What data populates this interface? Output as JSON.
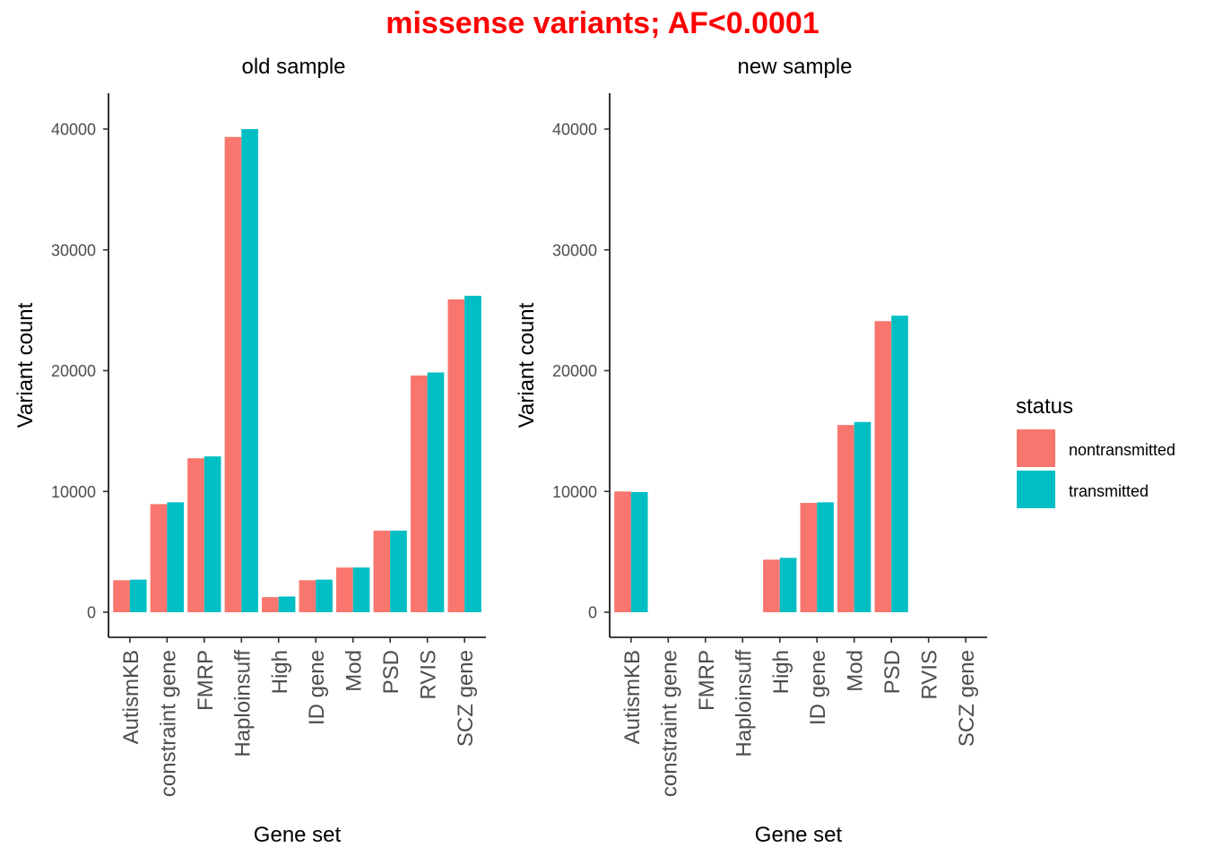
{
  "figure": {
    "title": "missense variants; AF<0.0001",
    "title_color": "#ff0000"
  },
  "legend": {
    "title": "status",
    "items": [
      {
        "label": "nontransmitted",
        "color": "#f8766d"
      },
      {
        "label": "transmitted",
        "color": "#00bfc4"
      }
    ]
  },
  "chart_data": [
    {
      "type": "bar",
      "title": "old sample",
      "xlabel": "Gene set",
      "ylabel": "Variant count",
      "ylim": [
        0,
        40000
      ],
      "yticks": [
        0,
        10000,
        20000,
        30000,
        40000
      ],
      "grid": false,
      "categories": [
        "AutismKB",
        "constraint gene",
        "FMRP",
        "Haploinsuff",
        "High",
        "ID gene",
        "Mod",
        "PSD",
        "RVIS",
        "SCZ gene"
      ],
      "series": [
        {
          "name": "nontransmitted",
          "values": [
            2650,
            8950,
            12750,
            39350,
            1250,
            2650,
            3700,
            6750,
            19600,
            25900
          ]
        },
        {
          "name": "transmitted",
          "values": [
            2700,
            9100,
            12900,
            40000,
            1300,
            2700,
            3700,
            6750,
            19850,
            26200
          ]
        }
      ]
    },
    {
      "type": "bar",
      "title": "new sample",
      "xlabel": "Gene set",
      "ylabel": "Variant count",
      "ylim": [
        0,
        40000
      ],
      "yticks": [
        0,
        10000,
        20000,
        30000,
        40000
      ],
      "grid": false,
      "categories": [
        "AutismKB",
        "constraint gene",
        "FMRP",
        "Haploinsuff",
        "High",
        "ID gene",
        "Mod",
        "PSD",
        "RVIS",
        "SCZ gene"
      ],
      "series": [
        {
          "name": "nontransmitted",
          "values": [
            10000,
            null,
            null,
            null,
            4350,
            9050,
            15500,
            24100,
            null,
            null
          ]
        },
        {
          "name": "transmitted",
          "values": [
            9950,
            null,
            null,
            null,
            4500,
            9100,
            15750,
            24550,
            null,
            null
          ]
        }
      ]
    }
  ]
}
